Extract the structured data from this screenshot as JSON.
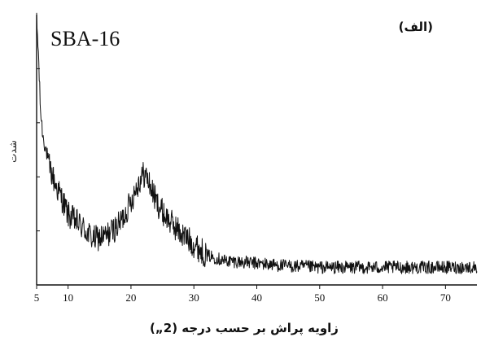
{
  "chart_data": {
    "type": "line",
    "sample_label": "SBA-16",
    "panel_label": "(الف)",
    "xlabel": "زاویه پراش بر حسب درجه (2„)",
    "ylabel": "شدت",
    "xlim": [
      5,
      75
    ],
    "xticks": [
      5,
      10,
      20,
      30,
      40,
      50,
      60,
      70
    ],
    "ylim": [
      0,
      100
    ],
    "grid": false,
    "series": [
      {
        "x": [
          5.0,
          5.3,
          5.6,
          6.0,
          6.5,
          7.0,
          8.0,
          9.0,
          10.0,
          12.0,
          14.0,
          16.0,
          18.0,
          19.0,
          20.0,
          21.0,
          22.0,
          22.5,
          23.0,
          24.0,
          25.0,
          26.0,
          28.0,
          30.0,
          32.0,
          35.0,
          40.0,
          45.0,
          50.0,
          55.0,
          60.0,
          65.0,
          70.0,
          75.0
        ],
        "values": [
          98,
          85,
          65,
          55,
          50,
          44,
          37,
          32,
          26,
          22,
          17,
          18,
          22,
          26,
          31,
          37,
          41,
          40,
          37,
          31,
          27,
          24,
          19,
          15,
          11,
          9,
          8,
          7,
          6.5,
          6.5,
          6.5,
          6.5,
          6.5,
          6.5
        ]
      }
    ]
  }
}
